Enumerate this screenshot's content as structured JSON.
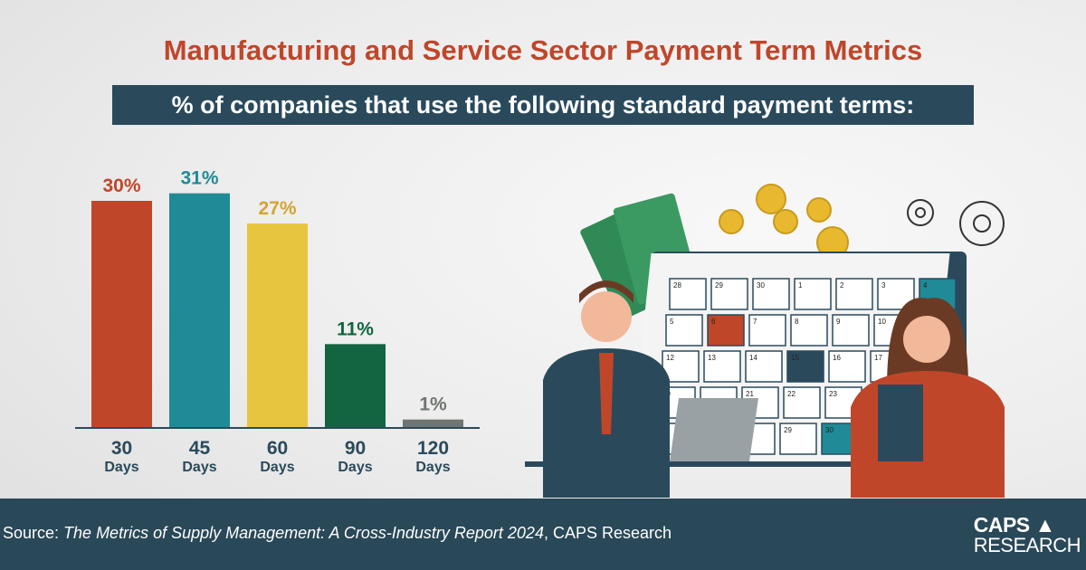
{
  "title": "Manufacturing and Service Sector Payment Term Metrics",
  "subtitle": "% of companies that use the following standard payment terms:",
  "chart_data": {
    "type": "bar",
    "categories": [
      [
        "30",
        "Days"
      ],
      [
        "45",
        "Days"
      ],
      [
        "60",
        "Days"
      ],
      [
        "90",
        "Days"
      ],
      [
        "120",
        "Days"
      ]
    ],
    "values": [
      30,
      31,
      27,
      11,
      1
    ],
    "data_labels": [
      "30%",
      "31%",
      "27%",
      "11%",
      "1%"
    ],
    "colors": [
      "#c0462a",
      "#208a96",
      "#e8c53e",
      "#12653f",
      "#6f7671"
    ],
    "label_colors": [
      "#c0462a",
      "#208a96",
      "#d4a431",
      "#12653f",
      "#6f7671"
    ],
    "ylim": [
      0,
      33
    ],
    "grid": false,
    "axis_color": "#2a4a5c"
  },
  "calendar": {
    "days": [
      "28",
      "29",
      "30",
      "1",
      "2",
      "3",
      "4",
      "5",
      "6",
      "7",
      "8",
      "9",
      "10",
      "",
      "12",
      "13",
      "14",
      "15",
      "16",
      "17",
      "",
      "19",
      "",
      "21",
      "22",
      "23",
      "",
      "",
      "",
      "",
      "",
      "29",
      "30",
      "",
      ""
    ]
  },
  "footer": {
    "source_prefix": "Source: ",
    "source_title": "The Metrics of Supply Management: A Cross-Industry Report 2024",
    "source_suffix": ", CAPS Research",
    "logo_line1": "CAPS",
    "logo_line2": "RESEARCH"
  }
}
